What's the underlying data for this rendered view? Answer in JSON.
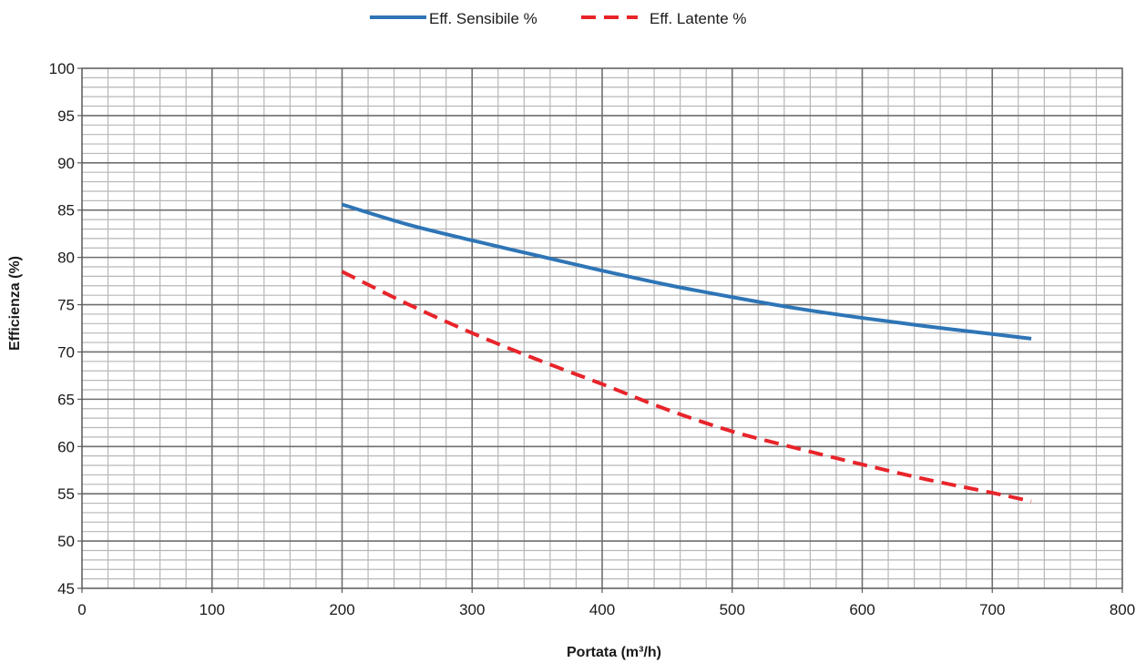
{
  "chart_data": {
    "type": "line",
    "title": "",
    "xlabel": "Portata (m³/h)",
    "ylabel": "Efficienza (%)",
    "xlim": [
      0,
      800
    ],
    "ylim": [
      45,
      100
    ],
    "x_ticks": [
      "0",
      "100",
      "200",
      "300",
      "400",
      "500",
      "600",
      "700",
      "800"
    ],
    "y_ticks": [
      "45",
      "50",
      "55",
      "60",
      "65",
      "70",
      "75",
      "80",
      "85",
      "90",
      "95",
      "100"
    ],
    "grid": true,
    "legend_position": "top-center",
    "series": [
      {
        "name": "Eff. Sensibile %",
        "color": "#2E75B6",
        "style": "solid",
        "x": [
          200,
          250,
          300,
          350,
          400,
          450,
          500,
          550,
          600,
          650,
          700,
          730
        ],
        "y": [
          85.6,
          83.5,
          81.8,
          80.2,
          78.6,
          77.1,
          75.8,
          74.6,
          73.6,
          72.7,
          71.9,
          71.4
        ]
      },
      {
        "name": "Eff. Latente %",
        "color": "#E8242B",
        "style": "dashed",
        "x": [
          200,
          250,
          300,
          350,
          400,
          450,
          500,
          550,
          600,
          650,
          700,
          730
        ],
        "y": [
          78.5,
          75.1,
          72.0,
          69.2,
          66.6,
          63.9,
          61.6,
          59.8,
          58.1,
          56.5,
          55.1,
          54.2
        ]
      }
    ]
  }
}
